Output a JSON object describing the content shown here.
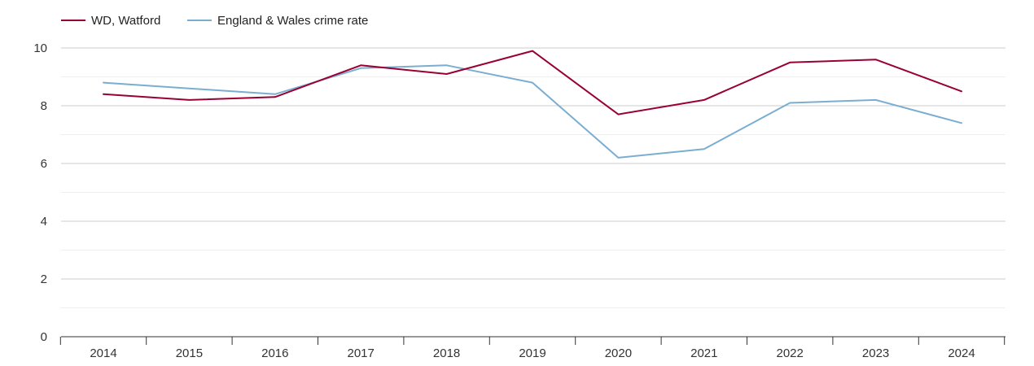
{
  "chart_data": {
    "type": "line",
    "title": "",
    "xlabel": "",
    "ylabel": "",
    "categories": [
      "2014",
      "2015",
      "2016",
      "2017",
      "2018",
      "2019",
      "2020",
      "2021",
      "2022",
      "2023",
      "2024"
    ],
    "ylim": [
      0,
      10
    ],
    "yticks": [
      0,
      2,
      4,
      6,
      8,
      10
    ],
    "grid": true,
    "legend_position": "top-left",
    "series": [
      {
        "name": "WD, Watford",
        "color": "#990033",
        "values": [
          8.4,
          8.2,
          8.3,
          9.4,
          9.1,
          9.9,
          7.7,
          8.2,
          9.5,
          9.6,
          8.5
        ]
      },
      {
        "name": "England & Wales crime rate",
        "color": "#7aaed1",
        "values": [
          8.8,
          8.6,
          8.4,
          9.3,
          9.4,
          8.8,
          6.2,
          6.5,
          8.1,
          8.2,
          7.4
        ]
      }
    ]
  }
}
